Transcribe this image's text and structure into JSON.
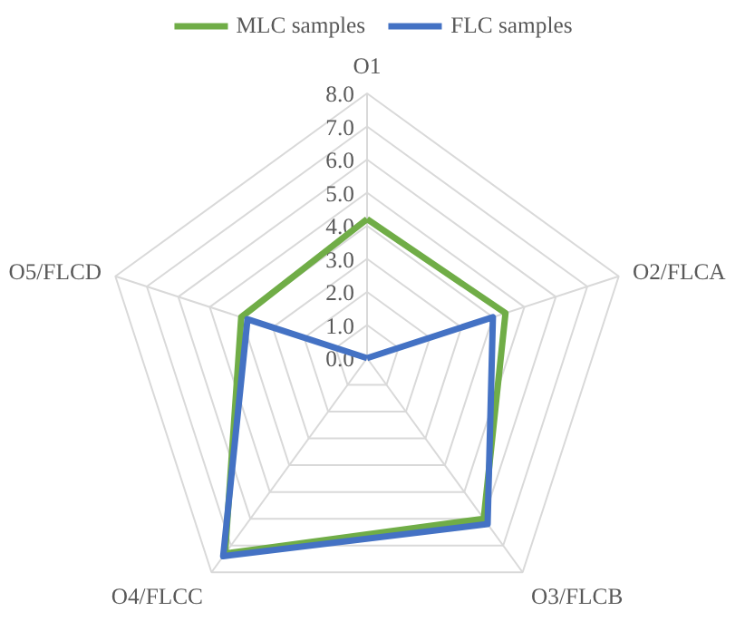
{
  "chart_data": {
    "type": "radar",
    "categories": [
      "O1",
      "O2/FLCA",
      "O3/FLCB",
      "O4/FLCC",
      "O5/FLCD"
    ],
    "series": [
      {
        "name": "MLC samples",
        "color": "#70ad47",
        "values": [
          4.2,
          4.4,
          6.0,
          7.3,
          4.0
        ]
      },
      {
        "name": "FLC samples",
        "color": "#4472c4",
        "values": [
          0.0,
          4.0,
          6.2,
          7.4,
          3.8
        ]
      }
    ],
    "ylim": [
      0,
      8
    ],
    "yticks": [
      {
        "value": 0,
        "label": "0.0"
      },
      {
        "value": 1,
        "label": "1.0"
      },
      {
        "value": 2,
        "label": "2.0"
      },
      {
        "value": 3,
        "label": "3.0"
      },
      {
        "value": 4,
        "label": "4.0"
      },
      {
        "value": 5,
        "label": "5.0"
      },
      {
        "value": 6,
        "label": "6.0"
      },
      {
        "value": 7,
        "label": "7.0"
      },
      {
        "value": 8,
        "label": "8.0"
      }
    ],
    "grid": true,
    "legend": "top"
  }
}
